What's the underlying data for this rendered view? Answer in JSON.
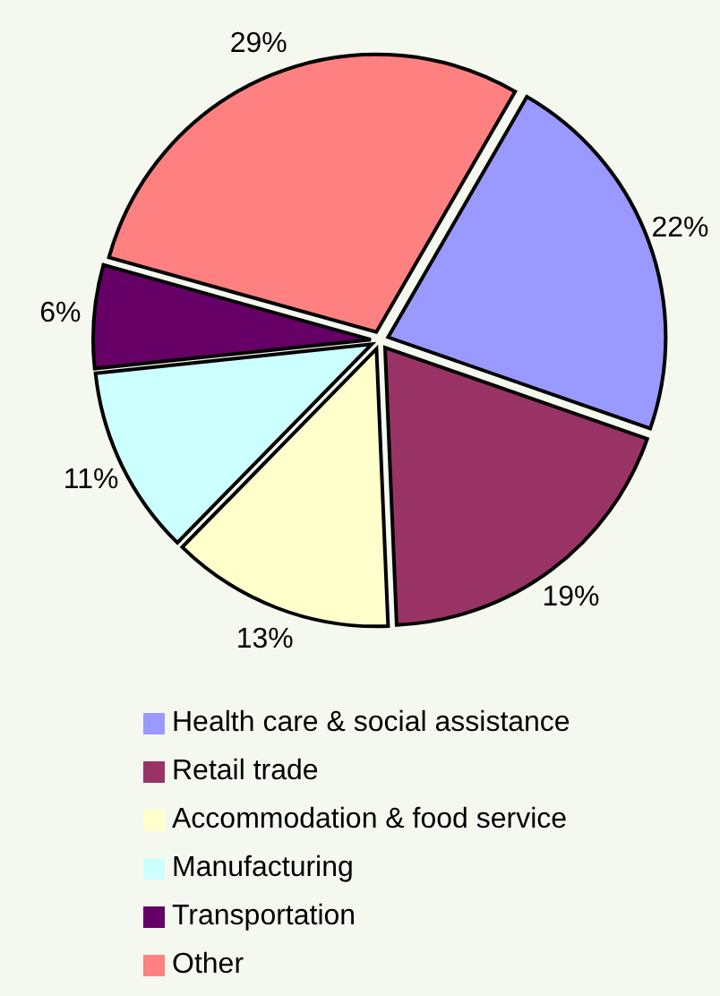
{
  "chart_data": {
    "type": "pie",
    "categories": [
      "Health care & social assistance",
      "Retail trade",
      "Accommodation & food service",
      "Manufacturing",
      "Transportation",
      "Other"
    ],
    "values": [
      22,
      19,
      13,
      11,
      6,
      29
    ],
    "value_labels": [
      "22%",
      "19%",
      "13%",
      "11%",
      "6%",
      "29%"
    ],
    "colors": [
      "#9999ff",
      "#993366",
      "#ffffcc",
      "#ccffff",
      "#660066",
      "#ff8080"
    ],
    "legend": "bottom"
  }
}
